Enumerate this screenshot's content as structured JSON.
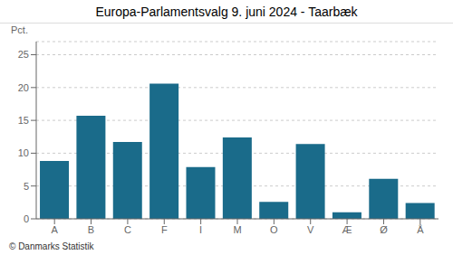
{
  "chart_data": {
    "type": "bar",
    "title": "Europa-Parlamentsvalg 9. juni 2024 - Taarbæk",
    "ylabel": "Pct.",
    "categories": [
      "A",
      "B",
      "C",
      "F",
      "I",
      "M",
      "O",
      "V",
      "Æ",
      "Ø",
      "Å"
    ],
    "values": [
      8.8,
      15.7,
      11.7,
      20.6,
      7.9,
      12.4,
      2.6,
      11.4,
      1.0,
      6.1,
      2.4
    ],
    "color": "#1a6b8a",
    "ylim": [
      0,
      27
    ],
    "yticks": [
      0,
      5,
      10,
      15,
      20,
      25
    ],
    "grid": true,
    "annotations": [
      "© Danmarks Statistik"
    ]
  }
}
